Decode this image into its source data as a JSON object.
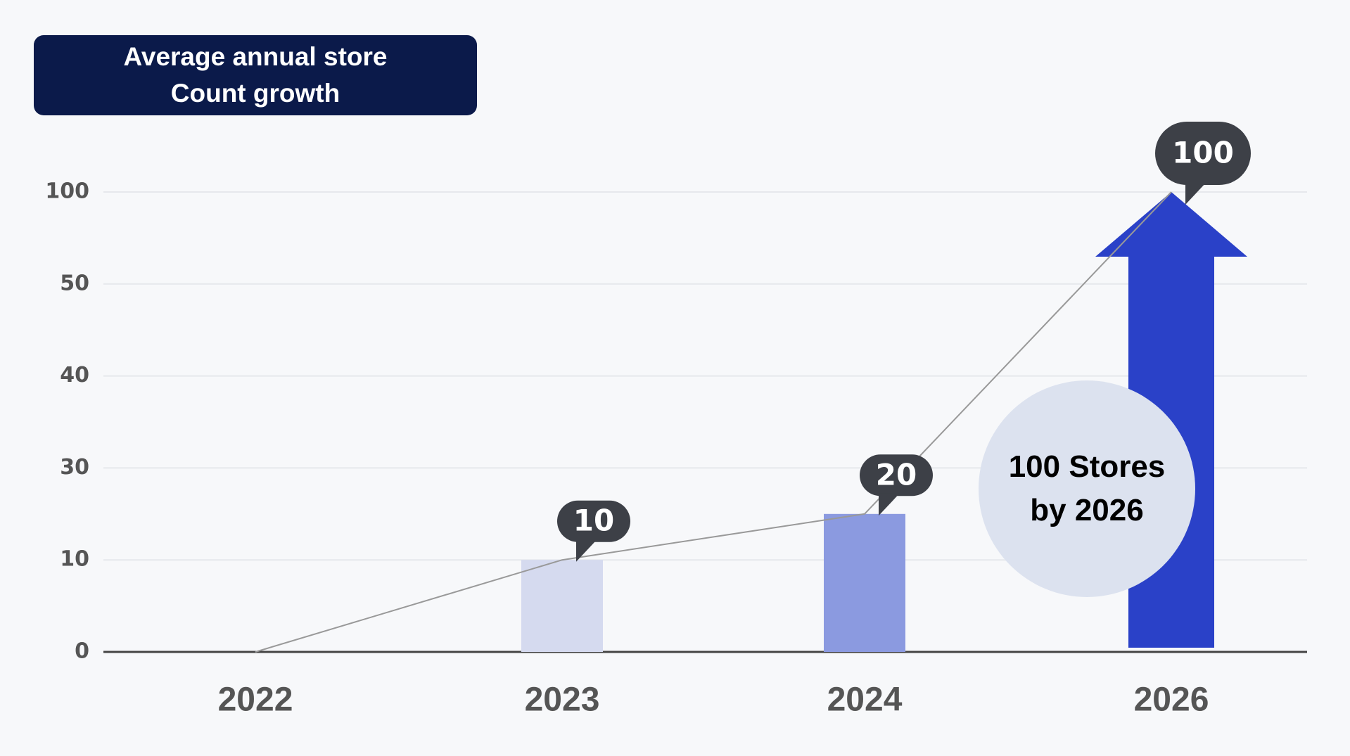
{
  "chart_data": {
    "type": "bar",
    "title": "Average annual store Count growth",
    "categories": [
      "2022",
      "2023",
      "2024",
      "2026"
    ],
    "values": [
      0,
      10,
      20,
      100
    ],
    "value_labels": [
      null,
      "10",
      "20",
      "100"
    ],
    "colors": [
      "#d5daef",
      "#d5daef",
      "#8b9ae0",
      "#2a41c8"
    ],
    "shapes": [
      "bar",
      "bar",
      "bar",
      "arrow"
    ],
    "ylim": [
      0,
      100
    ],
    "yticks": [
      0,
      10,
      30,
      40,
      50,
      100
    ],
    "grid": true,
    "annotation": "100 Stores by 2026"
  }
}
